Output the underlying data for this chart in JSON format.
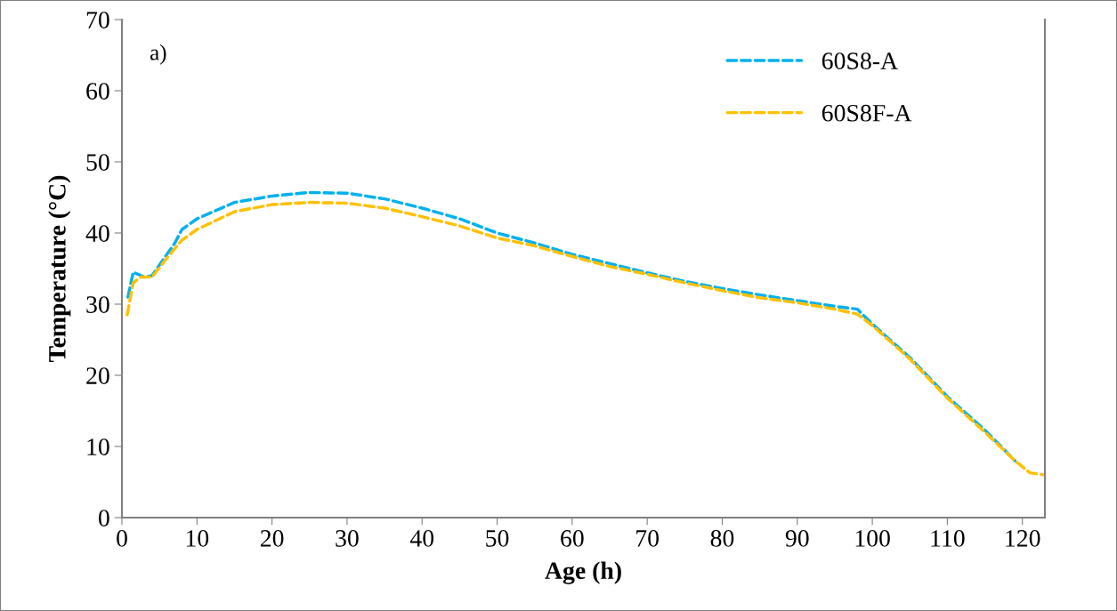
{
  "chart_data": {
    "type": "line",
    "xlabel": "Age (h)",
    "ylabel": "Temperature (°C)",
    "annotations": [
      "a)"
    ],
    "xlim": [
      0,
      123
    ],
    "xticks": [
      0,
      10,
      20,
      30,
      40,
      50,
      60,
      70,
      80,
      90,
      100,
      110,
      120
    ],
    "ylim": [
      0,
      70
    ],
    "yticks": [
      0,
      10,
      20,
      30,
      40,
      50,
      60,
      70
    ],
    "grid": false,
    "legend": "top right",
    "line_style": "dashed",
    "series": [
      {
        "name": "60S8-A",
        "color": "#00b0f0",
        "x": [
          0.8,
          1.5,
          3,
          4,
          5,
          7,
          8,
          10,
          15,
          20,
          25,
          30,
          35,
          40,
          45,
          50,
          55,
          60,
          65,
          70,
          75,
          80,
          85,
          90,
          95,
          98,
          100,
          105,
          110,
          115,
          119
        ],
        "values": [
          31,
          34.5,
          33.8,
          34,
          35.5,
          38.5,
          40.5,
          42,
          44.3,
          45.2,
          45.7,
          45.6,
          44.8,
          43.5,
          42,
          40,
          38.6,
          37,
          35.7,
          34.4,
          33.2,
          32.2,
          31.3,
          30.5,
          29.7,
          29.3,
          27.2,
          22.5,
          17,
          12.3,
          8
        ]
      },
      {
        "name": "60S8F-A",
        "color": "#ffc000",
        "x": [
          0.7,
          1.5,
          2.5,
          4,
          6,
          8,
          10,
          15,
          20,
          25,
          30,
          35,
          40,
          45,
          50,
          55,
          60,
          65,
          70,
          75,
          80,
          85,
          90,
          95,
          98,
          100,
          105,
          110,
          115,
          119,
          121,
          123
        ],
        "values": [
          28.5,
          33,
          33.8,
          33.8,
          36.5,
          39,
          40.5,
          43,
          44,
          44.3,
          44.2,
          43.5,
          42.3,
          41,
          39.3,
          38.2,
          36.7,
          35.3,
          34.2,
          33,
          31.9,
          30.9,
          30.2,
          29.3,
          28.6,
          27,
          22.3,
          16.8,
          12,
          8,
          6.3,
          6
        ]
      }
    ]
  }
}
